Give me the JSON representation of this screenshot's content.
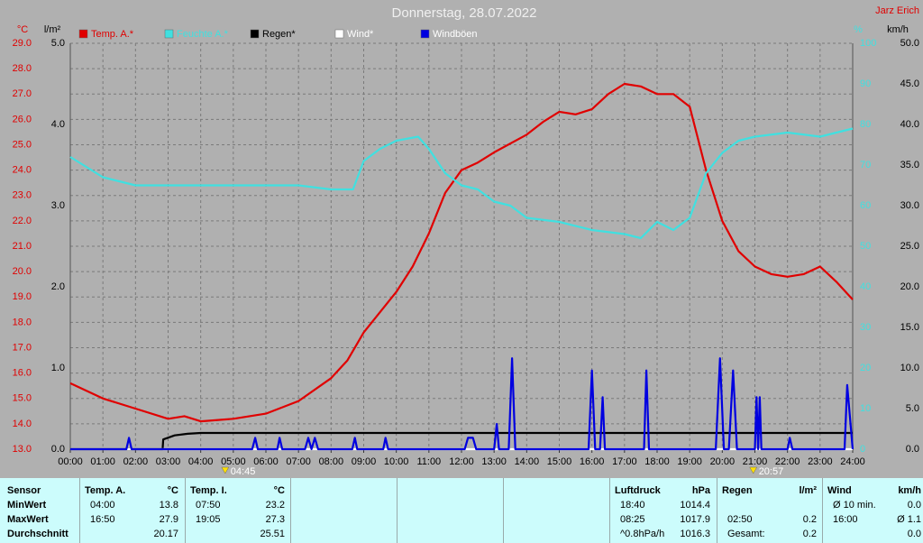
{
  "chart_data": {
    "type": "line",
    "title": "Donnerstag, 28.07.2022",
    "author": "Jarz Erich",
    "xlim": [
      0,
      24
    ],
    "xticks": [
      {
        "value": 0,
        "label": "00:00"
      },
      {
        "value": 1,
        "label": "01:00"
      },
      {
        "value": 2,
        "label": "02:00"
      },
      {
        "value": 3,
        "label": "03:00"
      },
      {
        "value": 4,
        "label": "04:00"
      },
      {
        "value": 5,
        "label": "05:00"
      },
      {
        "value": 6,
        "label": "06:00"
      },
      {
        "value": 7,
        "label": "07:00"
      },
      {
        "value": 8,
        "label": "08:00"
      },
      {
        "value": 9,
        "label": "09:00"
      },
      {
        "value": 10,
        "label": "10:00"
      },
      {
        "value": 11,
        "label": "11:00"
      },
      {
        "value": 12,
        "label": "12:00"
      },
      {
        "value": 13,
        "label": "13:00"
      },
      {
        "value": 14,
        "label": "14:00"
      },
      {
        "value": 15,
        "label": "15:00"
      },
      {
        "value": 16,
        "label": "16:00"
      },
      {
        "value": 17,
        "label": "17:00"
      },
      {
        "value": 18,
        "label": "18:00"
      },
      {
        "value": 19,
        "label": "19:00"
      },
      {
        "value": 20,
        "label": "20:00"
      },
      {
        "value": 21,
        "label": "21:00"
      },
      {
        "value": 22,
        "label": "22:00"
      },
      {
        "value": 23,
        "label": "23:00"
      },
      {
        "value": 24,
        "label": "24:00"
      }
    ],
    "ylabel": "°C",
    "ylim": [
      13,
      29
    ],
    "yticks": [
      {
        "value": 13,
        "label": "13.0"
      },
      {
        "value": 14,
        "label": "14.0"
      },
      {
        "value": 15,
        "label": "15.0"
      },
      {
        "value": 16,
        "label": "16.0"
      },
      {
        "value": 17,
        "label": "17.0"
      },
      {
        "value": 18,
        "label": "18.0"
      },
      {
        "value": 19,
        "label": "19.0"
      },
      {
        "value": 20,
        "label": "20.0"
      },
      {
        "value": 21,
        "label": "21.0"
      },
      {
        "value": 22,
        "label": "22.0"
      },
      {
        "value": 23,
        "label": "23.0"
      },
      {
        "value": 24,
        "label": "24.0"
      },
      {
        "value": 25,
        "label": "25.0"
      },
      {
        "value": 26,
        "label": "26.0"
      },
      {
        "value": 27,
        "label": "27.0"
      },
      {
        "value": 28,
        "label": "28.0"
      },
      {
        "value": 29,
        "label": "29.0"
      }
    ],
    "y2label": "l/m²",
    "y2lim": [
      0,
      5
    ],
    "y2ticks": [
      {
        "value": 0,
        "label": "0.0"
      },
      {
        "value": 1,
        "label": "1.0"
      },
      {
        "value": 2,
        "label": "2.0"
      },
      {
        "value": 3,
        "label": "3.0"
      },
      {
        "value": 4,
        "label": "4.0"
      },
      {
        "value": 5,
        "label": "5.0"
      }
    ],
    "y3label": "%",
    "y3lim": [
      0,
      100
    ],
    "y3ticks": [
      0,
      10,
      20,
      30,
      40,
      50,
      60,
      70,
      80,
      90,
      100
    ],
    "y4label": "km/h",
    "y4lim": [
      0,
      50
    ],
    "y4ticks": [
      {
        "value": 0,
        "label": "0.0"
      },
      {
        "value": 5,
        "label": "5.0"
      },
      {
        "value": 10,
        "label": "10.0"
      },
      {
        "value": 15,
        "label": "15.0"
      },
      {
        "value": 20,
        "label": "20.0"
      },
      {
        "value": 25,
        "label": "25.0"
      },
      {
        "value": 30,
        "label": "30.0"
      },
      {
        "value": 35,
        "label": "35.0"
      },
      {
        "value": 40,
        "label": "40.0"
      },
      {
        "value": 45,
        "label": "45.0"
      },
      {
        "value": 50,
        "label": "50.0"
      }
    ],
    "grid": true,
    "series": [
      {
        "name": "Temp. A.*",
        "color": "#e00000",
        "label_color": "#e00000",
        "axis": "y",
        "x": [
          0,
          1,
          2,
          3,
          3.5,
          4,
          5,
          6,
          7,
          8,
          8.5,
          9,
          10,
          10.5,
          11,
          11.5,
          12,
          12.5,
          13,
          14,
          14.5,
          15,
          15.5,
          16,
          16.5,
          17,
          17.5,
          18,
          18.5,
          19,
          19.5,
          20,
          20.5,
          21,
          21.5,
          22,
          22.5,
          23,
          23.5,
          24
        ],
        "values": [
          15.6,
          15.0,
          14.6,
          14.2,
          14.3,
          14.1,
          14.2,
          14.4,
          14.9,
          15.8,
          16.5,
          17.6,
          19.2,
          20.2,
          21.5,
          23.1,
          24.0,
          24.3,
          24.7,
          25.4,
          25.9,
          26.3,
          26.2,
          26.4,
          27.0,
          27.4,
          27.3,
          27.0,
          27.0,
          26.5,
          24.0,
          22.0,
          20.8,
          20.2,
          19.9,
          19.8,
          19.9,
          20.2,
          19.6,
          18.9
        ]
      },
      {
        "name": "Feuchte A.*",
        "color": "#40e0e0",
        "label_color": "#40e0e0",
        "axis": "y3",
        "x": [
          0,
          1,
          2,
          3,
          5,
          7,
          8,
          8.67,
          9,
          9.5,
          10,
          10.67,
          11,
          11.5,
          12,
          12.5,
          13,
          13.5,
          14,
          15,
          16,
          17,
          17.5,
          18,
          18.5,
          19,
          19.5,
          20,
          20.5,
          21,
          22,
          23,
          24
        ],
        "values": [
          72,
          67,
          65,
          65,
          65,
          65,
          64,
          64,
          71,
          74,
          76,
          77,
          74,
          68,
          65,
          64,
          61,
          60,
          57,
          56,
          54,
          53,
          52,
          56,
          54,
          57,
          68,
          73,
          76,
          77,
          78,
          77,
          79
        ]
      },
      {
        "name": "Regen*",
        "color": "#000000",
        "label_color": "#000000",
        "axis": "y2",
        "x": [
          0,
          2.83,
          2.85,
          3.2,
          3.6,
          4,
          24
        ],
        "values": [
          0,
          0,
          0.12,
          0.17,
          0.19,
          0.2,
          0.2
        ]
      },
      {
        "name": "Wind*",
        "color": "#ffffff",
        "label_color": "#ffffff",
        "axis": "y4",
        "x": [
          0,
          24
        ],
        "values": [
          0,
          0
        ]
      },
      {
        "name": "Windböen",
        "color": "#0000e0",
        "label_color": "#ffffff",
        "axis": "y4",
        "x": [
          0,
          1.72,
          1.8,
          1.88,
          5.58,
          5.67,
          5.75,
          6.35,
          6.42,
          6.5,
          7.2,
          7.3,
          7.4,
          7.5,
          7.6,
          8.65,
          8.73,
          8.8,
          9.6,
          9.67,
          9.75,
          12.1,
          12.2,
          12.35,
          12.45,
          13.0,
          13.08,
          13.15,
          13.45,
          13.55,
          13.65,
          15.9,
          16.0,
          16.1,
          16.25,
          16.33,
          16.4,
          17.6,
          17.67,
          17.75,
          19.8,
          19.93,
          20.05,
          20.2,
          20.33,
          20.45,
          21.0,
          21.05,
          21.1,
          21.15,
          21.2,
          22.0,
          22.07,
          22.15,
          23.75,
          23.83,
          24
        ],
        "values": [
          0,
          0,
          1.4,
          0,
          0,
          1.4,
          0,
          0,
          1.4,
          0,
          0,
          1.4,
          0,
          1.4,
          0,
          0,
          1.4,
          0,
          0,
          1.4,
          0,
          0,
          1.4,
          1.4,
          0,
          0,
          3.1,
          0,
          0,
          11.2,
          0,
          0,
          9.7,
          0,
          0,
          6.4,
          0,
          0,
          9.7,
          0,
          0,
          11.2,
          0,
          0,
          9.7,
          0,
          0,
          6.4,
          0,
          6.4,
          0,
          0,
          1.4,
          0,
          0,
          7.9,
          0
        ]
      }
    ],
    "annotations": [
      {
        "x": 4.75,
        "label": "04:45"
      },
      {
        "x": 20.95,
        "label": "20:57"
      }
    ]
  },
  "stats": {
    "row_labels": [
      "Sensor",
      "MinWert",
      "MaxWert",
      "Durchschnitt"
    ],
    "blocks": [
      {
        "title": "Temp. A.",
        "unit": "°C",
        "min": {
          "time": "04:00",
          "value": "13.8"
        },
        "max": {
          "time": "16:50",
          "value": "27.9"
        },
        "avg": {
          "value": "20.17"
        }
      },
      {
        "title": "Temp. I.",
        "unit": "°C",
        "min": {
          "time": "07:50",
          "value": "23.2"
        },
        "max": {
          "time": "19:05",
          "value": "27.3"
        },
        "avg": {
          "value": "25.51"
        }
      },
      {
        "title": "Luftdruck",
        "unit": "hPa",
        "min": {
          "time": "18:40",
          "value": "1014.4"
        },
        "max": {
          "time": "08:25",
          "value": "1017.9"
        },
        "avg": {
          "time": "^0.8hPa/h",
          "value": "1016.3"
        }
      },
      {
        "title": "Regen",
        "unit": "l/m²",
        "max": {
          "time": "02:50",
          "value": "0.2"
        },
        "avg": {
          "time": "Gesamt:",
          "value": "0.2"
        }
      },
      {
        "title": "Wind",
        "unit": "km/h",
        "min": {
          "time": "Ø 10 min.",
          "value": "0.0"
        },
        "max": {
          "time": "16:00",
          "value": "Ø 1.1"
        },
        "avg": {
          "value": "0.0"
        }
      }
    ]
  }
}
